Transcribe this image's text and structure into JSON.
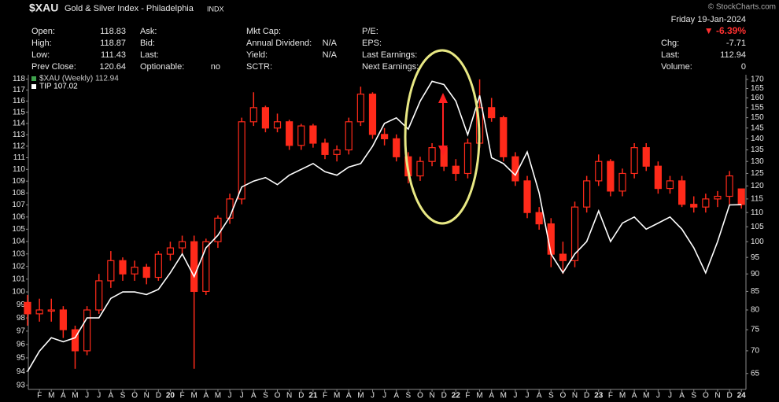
{
  "chart_data": {
    "type": "candlestick",
    "symbol": "$XAU",
    "title": "Gold & Silver Index - Philadelphia",
    "exchange": "INDX",
    "watermark": "© StockCharts.com",
    "date": "Friday 19-Jan-2024",
    "change_pct": "▼ -6.39%",
    "quote_columns": [
      [
        [
          "Open:",
          "118.83"
        ],
        [
          "High:",
          "118.87"
        ],
        [
          "Low:",
          "111.43"
        ],
        [
          "Prev Close:",
          "120.64"
        ]
      ],
      [
        [
          "Ask:"
        ],
        [
          "Bid:"
        ],
        [
          "Last:"
        ],
        [
          "Optionable:",
          "no"
        ]
      ],
      [
        [
          "Mkt Cap:"
        ],
        [
          "Annual Dividend:",
          "N/A"
        ],
        [
          "Yield:",
          "N/A"
        ],
        [
          "SCTR:"
        ]
      ],
      [
        [
          "P/E:"
        ],
        [
          "EPS:"
        ],
        [
          "Last Earnings:"
        ],
        [
          "Next Earnings:"
        ]
      ]
    ],
    "quote_right": [
      [
        "Chg:",
        "-7.71"
      ],
      [
        "Last:",
        "112.94"
      ],
      [
        "Volume:",
        "0"
      ]
    ],
    "categories": [
      null,
      "F",
      "M",
      "A",
      "M",
      "J",
      "J",
      "A",
      "S",
      "O",
      "N",
      "D",
      "20",
      "F",
      "M",
      "A",
      "M",
      "J",
      "J",
      "A",
      "S",
      "O",
      "N",
      "D",
      "21",
      "F",
      "M",
      "A",
      "M",
      "J",
      "J",
      "A",
      "S",
      "O",
      "N",
      "D",
      "22",
      "F",
      "M",
      "A",
      "M",
      "J",
      "J",
      "A",
      "S",
      "O",
      "N",
      "D",
      "23",
      "F",
      "M",
      "A",
      "M",
      "J",
      "J",
      "A",
      "S",
      "O",
      "N",
      "D",
      "24"
    ],
    "series": [
      {
        "name": "$XAU (Weekly) 112.94",
        "color": "#ff2a1a",
        "axis": "y2",
        "open": [
          82,
          79,
          80,
          80,
          75,
          70,
          80,
          88,
          94,
          90,
          92,
          89,
          96,
          98,
          100,
          85,
          100,
          108,
          115,
          148,
          155,
          145,
          148,
          137,
          146,
          138,
          133,
          135,
          148,
          162,
          142,
          140,
          132,
          124,
          130,
          136,
          128,
          125,
          138,
          155,
          150,
          132,
          122,
          110,
          106,
          96,
          94,
          112,
          122,
          130,
          118,
          125,
          136,
          128,
          119,
          122,
          113,
          112,
          115,
          116,
          118.83
        ],
        "high": [
          84,
          83,
          83,
          81,
          76,
          81,
          90,
          97,
          95,
          94,
          93,
          97,
          100,
          102,
          102,
          101,
          109,
          117,
          150,
          163,
          156,
          152,
          149,
          147,
          147,
          140,
          137,
          150,
          166,
          163,
          145,
          142,
          134,
          132,
          138,
          137,
          131,
          140,
          170,
          160,
          151,
          134,
          124,
          112,
          108,
          100,
          114,
          124,
          133,
          131,
          127,
          138,
          138,
          130,
          124,
          124,
          116,
          117,
          118,
          126,
          118.87
        ],
        "low": [
          76,
          77,
          77,
          73,
          66,
          69,
          79,
          86,
          88,
          88,
          87,
          88,
          94,
          96,
          66,
          84,
          98,
          106,
          113,
          146,
          143,
          143,
          135,
          135,
          136,
          131,
          130,
          133,
          146,
          140,
          137,
          130,
          121,
          122,
          128,
          126,
          122,
          123,
          136,
          148,
          130,
          120,
          108,
          104,
          92,
          90,
          92,
          110,
          120,
          116,
          116,
          123,
          126,
          117,
          117,
          112,
          110,
          110,
          112,
          113,
          111.43
        ],
        "close": [
          79,
          80,
          80,
          75,
          70,
          80,
          88,
          94,
          90,
          92,
          89,
          96,
          98,
          100,
          85,
          100,
          108,
          115,
          148,
          155,
          145,
          148,
          137,
          146,
          138,
          133,
          135,
          148,
          162,
          142,
          140,
          132,
          124,
          130,
          136,
          128,
          125,
          138,
          155,
          150,
          132,
          122,
          110,
          106,
          96,
          94,
          112,
          122,
          130,
          118,
          125,
          136,
          128,
          119,
          122,
          113,
          112,
          115,
          116,
          124,
          112.94
        ]
      },
      {
        "name": "TIP 107.02",
        "color": "#ffffff",
        "axis": "y",
        "values": [
          94,
          95.5,
          96.5,
          96.2,
          96.5,
          98,
          98,
          99.5,
          100,
          100,
          99.8,
          100.2,
          101.5,
          103,
          101.2,
          103.5,
          104.5,
          106,
          108.5,
          109,
          109.3,
          108.7,
          109.5,
          110,
          110.5,
          109.8,
          109.5,
          110.2,
          110.5,
          112,
          114,
          114.5,
          113.5,
          116,
          117.8,
          117.5,
          116,
          113,
          116.5,
          111,
          110.5,
          109.5,
          111.5,
          108,
          103,
          101.5,
          103,
          104,
          106.5,
          104,
          105.5,
          106,
          105,
          105.5,
          106,
          105,
          103.5,
          101.5,
          104,
          107,
          107.02
        ]
      }
    ],
    "ylim": [
      92.7,
      118.4
    ],
    "yticks": [
      93,
      94,
      95,
      96,
      97,
      98,
      99,
      100,
      101,
      102,
      103,
      104,
      105,
      106,
      107,
      108,
      109,
      110,
      111,
      112,
      113,
      114,
      115,
      116,
      117,
      118
    ],
    "y2lim": [
      61.7,
      172.6
    ],
    "y2ticks": [
      65,
      70,
      75,
      80,
      85,
      90,
      95,
      100,
      105,
      110,
      115,
      120,
      125,
      130,
      135,
      140,
      145,
      150,
      155,
      160,
      165,
      170
    ],
    "ylog": true,
    "y2log": true,
    "grid": false
  }
}
